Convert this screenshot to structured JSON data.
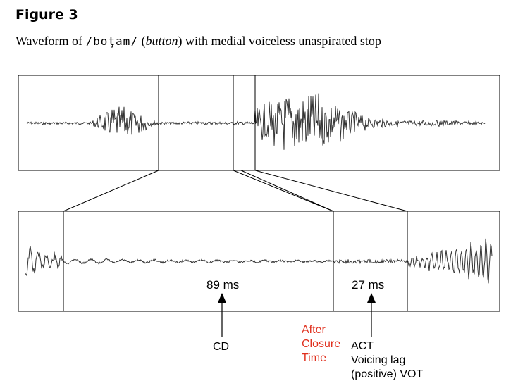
{
  "figure": {
    "label": "Figure 3",
    "caption_prefix": "Waveform of ",
    "caption_ipa": "/boţam/",
    "caption_paren_open": " (",
    "caption_gloss": "button",
    "caption_suffix": ") with medial voiceless unaspirated stop"
  },
  "measurements": {
    "cd_duration": "89 ms",
    "act_duration": "27 ms"
  },
  "labels": {
    "cd": "CD",
    "after_closure_line1": "After",
    "after_closure_line2": "Closure",
    "after_closure_line3": "Time",
    "act": "ACT",
    "voicing_lag": "Voicing lag",
    "positive_vot": "(positive) VOT"
  },
  "colors": {
    "annotation_red": "#e0301e",
    "waveform": "#333333"
  }
}
